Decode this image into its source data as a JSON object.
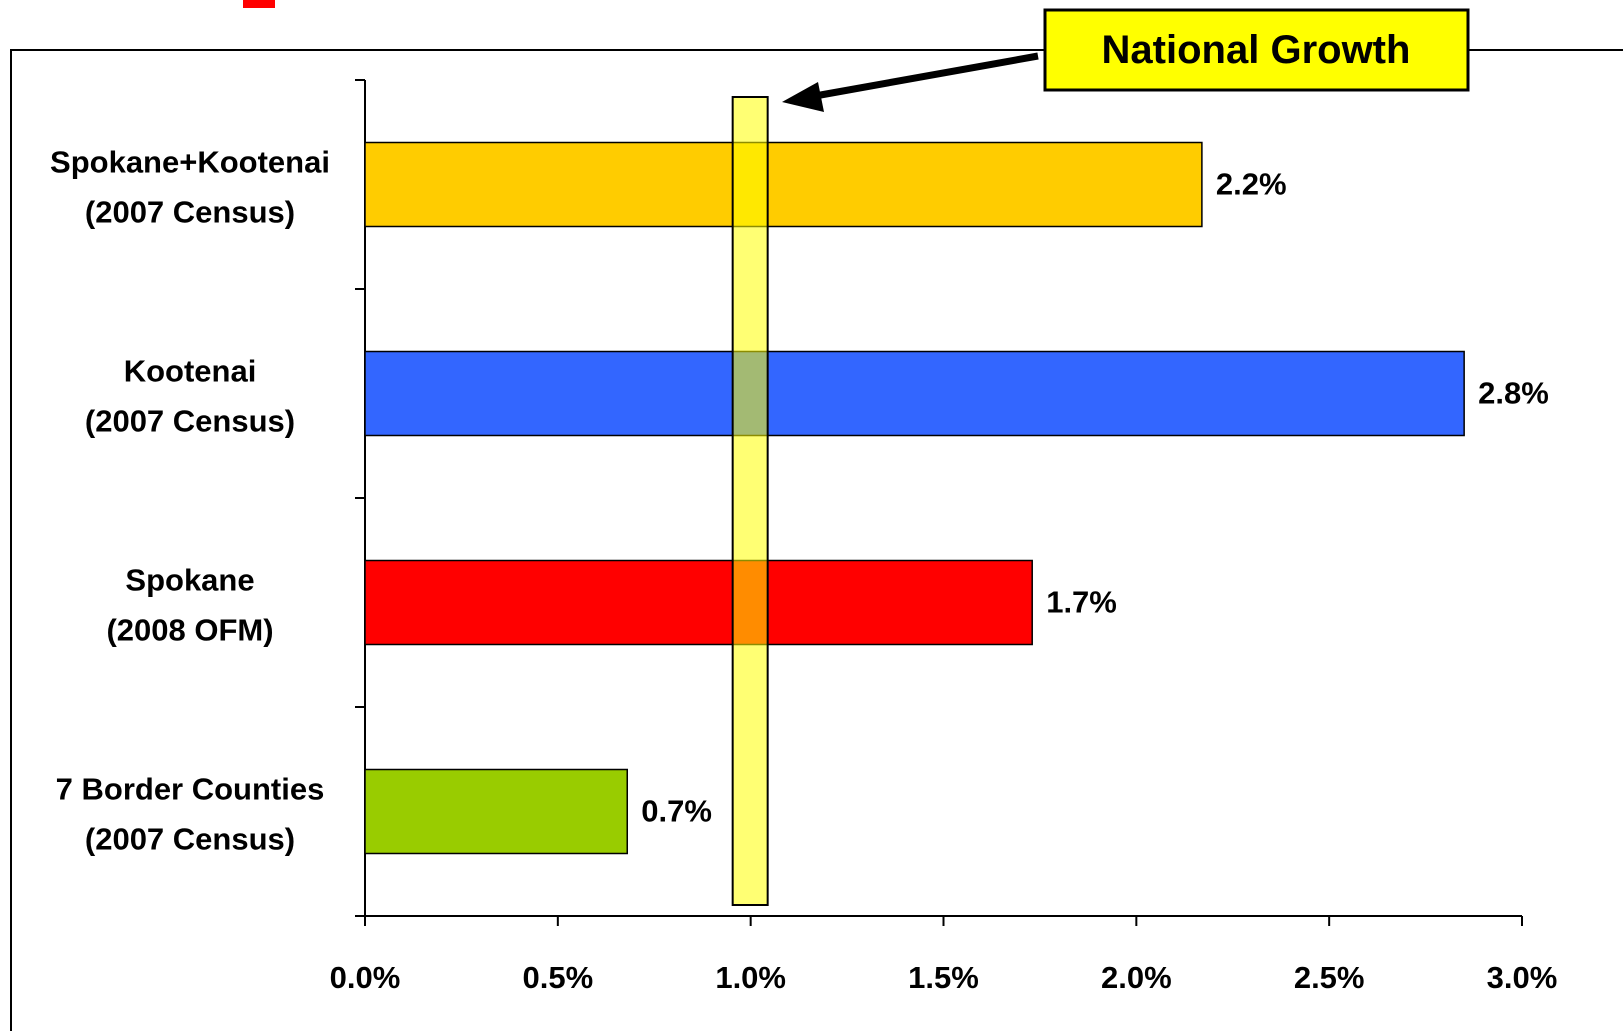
{
  "chart_data": {
    "type": "bar",
    "orientation": "horizontal",
    "categories": [
      [
        "Spokane+Kootenai",
        "(2007 Census)"
      ],
      [
        "Kootenai",
        "(2007 Census)"
      ],
      [
        "Spokane",
        "(2008 OFM)"
      ],
      [
        "7 Border Counties",
        "(2007 Census)"
      ]
    ],
    "values": [
      2.17,
      2.85,
      1.73,
      0.68
    ],
    "data_labels": [
      "2.2%",
      "2.8%",
      "1.7%",
      "0.7%"
    ],
    "bar_colors": [
      "#FFCC00",
      "#3366FF",
      "#FF0000",
      "#99CC00"
    ],
    "xlim": [
      0,
      3.0
    ],
    "x_ticks": [
      0,
      0.5,
      1.0,
      1.5,
      2.0,
      2.5,
      3.0
    ],
    "x_tick_labels": [
      "0.0%",
      "0.5%",
      "1.0%",
      "1.5%",
      "2.0%",
      "2.5%",
      "3.0%"
    ],
    "reference_line": {
      "value": 1.0,
      "label": "National Growth",
      "color": "#FFFF00"
    },
    "grid": false,
    "title": "",
    "xlabel": "",
    "ylabel": ""
  }
}
